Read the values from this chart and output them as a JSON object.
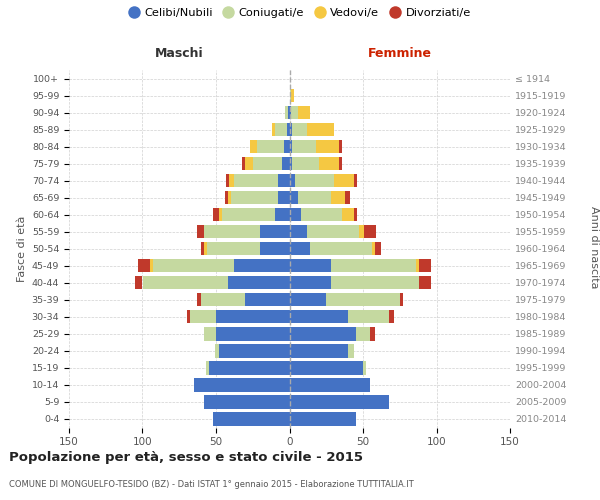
{
  "age_groups": [
    "0-4",
    "5-9",
    "10-14",
    "15-19",
    "20-24",
    "25-29",
    "30-34",
    "35-39",
    "40-44",
    "45-49",
    "50-54",
    "55-59",
    "60-64",
    "65-69",
    "70-74",
    "75-79",
    "80-84",
    "85-89",
    "90-94",
    "95-99",
    "100+"
  ],
  "birth_years": [
    "2010-2014",
    "2005-2009",
    "2000-2004",
    "1995-1999",
    "1990-1994",
    "1985-1989",
    "1980-1984",
    "1975-1979",
    "1970-1974",
    "1965-1969",
    "1960-1964",
    "1955-1959",
    "1950-1954",
    "1945-1949",
    "1940-1944",
    "1935-1939",
    "1930-1934",
    "1925-1929",
    "1920-1924",
    "1915-1919",
    "≤ 1914"
  ],
  "males_celibi": [
    52,
    58,
    65,
    55,
    48,
    50,
    50,
    30,
    42,
    38,
    20,
    20,
    10,
    8,
    8,
    5,
    4,
    2,
    1,
    0,
    0
  ],
  "males_coniugati": [
    0,
    0,
    0,
    2,
    3,
    8,
    18,
    30,
    58,
    55,
    36,
    38,
    36,
    32,
    30,
    20,
    18,
    8,
    2,
    0,
    0
  ],
  "males_vedovi": [
    0,
    0,
    0,
    0,
    0,
    0,
    0,
    0,
    0,
    2,
    2,
    0,
    2,
    2,
    3,
    5,
    5,
    2,
    0,
    0,
    0
  ],
  "males_divorziati": [
    0,
    0,
    0,
    0,
    0,
    0,
    2,
    3,
    5,
    8,
    2,
    5,
    4,
    2,
    2,
    2,
    0,
    0,
    0,
    0,
    0
  ],
  "fem_nubili": [
    45,
    68,
    55,
    50,
    40,
    45,
    40,
    25,
    28,
    28,
    14,
    12,
    8,
    6,
    4,
    2,
    2,
    2,
    1,
    0,
    0
  ],
  "fem_coniugate": [
    0,
    0,
    0,
    2,
    4,
    10,
    28,
    50,
    60,
    58,
    42,
    35,
    28,
    22,
    26,
    18,
    16,
    10,
    5,
    1,
    0
  ],
  "fem_vedove": [
    0,
    0,
    0,
    0,
    0,
    0,
    0,
    0,
    0,
    2,
    2,
    4,
    8,
    10,
    14,
    14,
    16,
    18,
    8,
    2,
    0
  ],
  "fem_divorziate": [
    0,
    0,
    0,
    0,
    0,
    3,
    3,
    2,
    8,
    8,
    4,
    8,
    2,
    3,
    2,
    2,
    2,
    0,
    0,
    0,
    0
  ],
  "color_celibi": "#4472c4",
  "color_coniugati": "#c5d9a0",
  "color_vedovi": "#f5c842",
  "color_divorziati": "#c0392b",
  "title": "Popolazione per età, sesso e stato civile - 2015",
  "subtitle": "COMUNE DI MONGUELFO-TESIDO (BZ) - Dati ISTAT 1° gennaio 2015 - Elaborazione TUTTITALIA.IT",
  "label_maschi": "Maschi",
  "label_femmine": "Femmine",
  "ylabel_left": "Fasce di età",
  "ylabel_right": "Anni di nascita",
  "xlim": 150,
  "bg_color": "#ffffff",
  "grid_color": "#cccccc",
  "legend_labels": [
    "Celibi/Nubili",
    "Coniugati/e",
    "Vedovi/e",
    "Divorziati/e"
  ]
}
